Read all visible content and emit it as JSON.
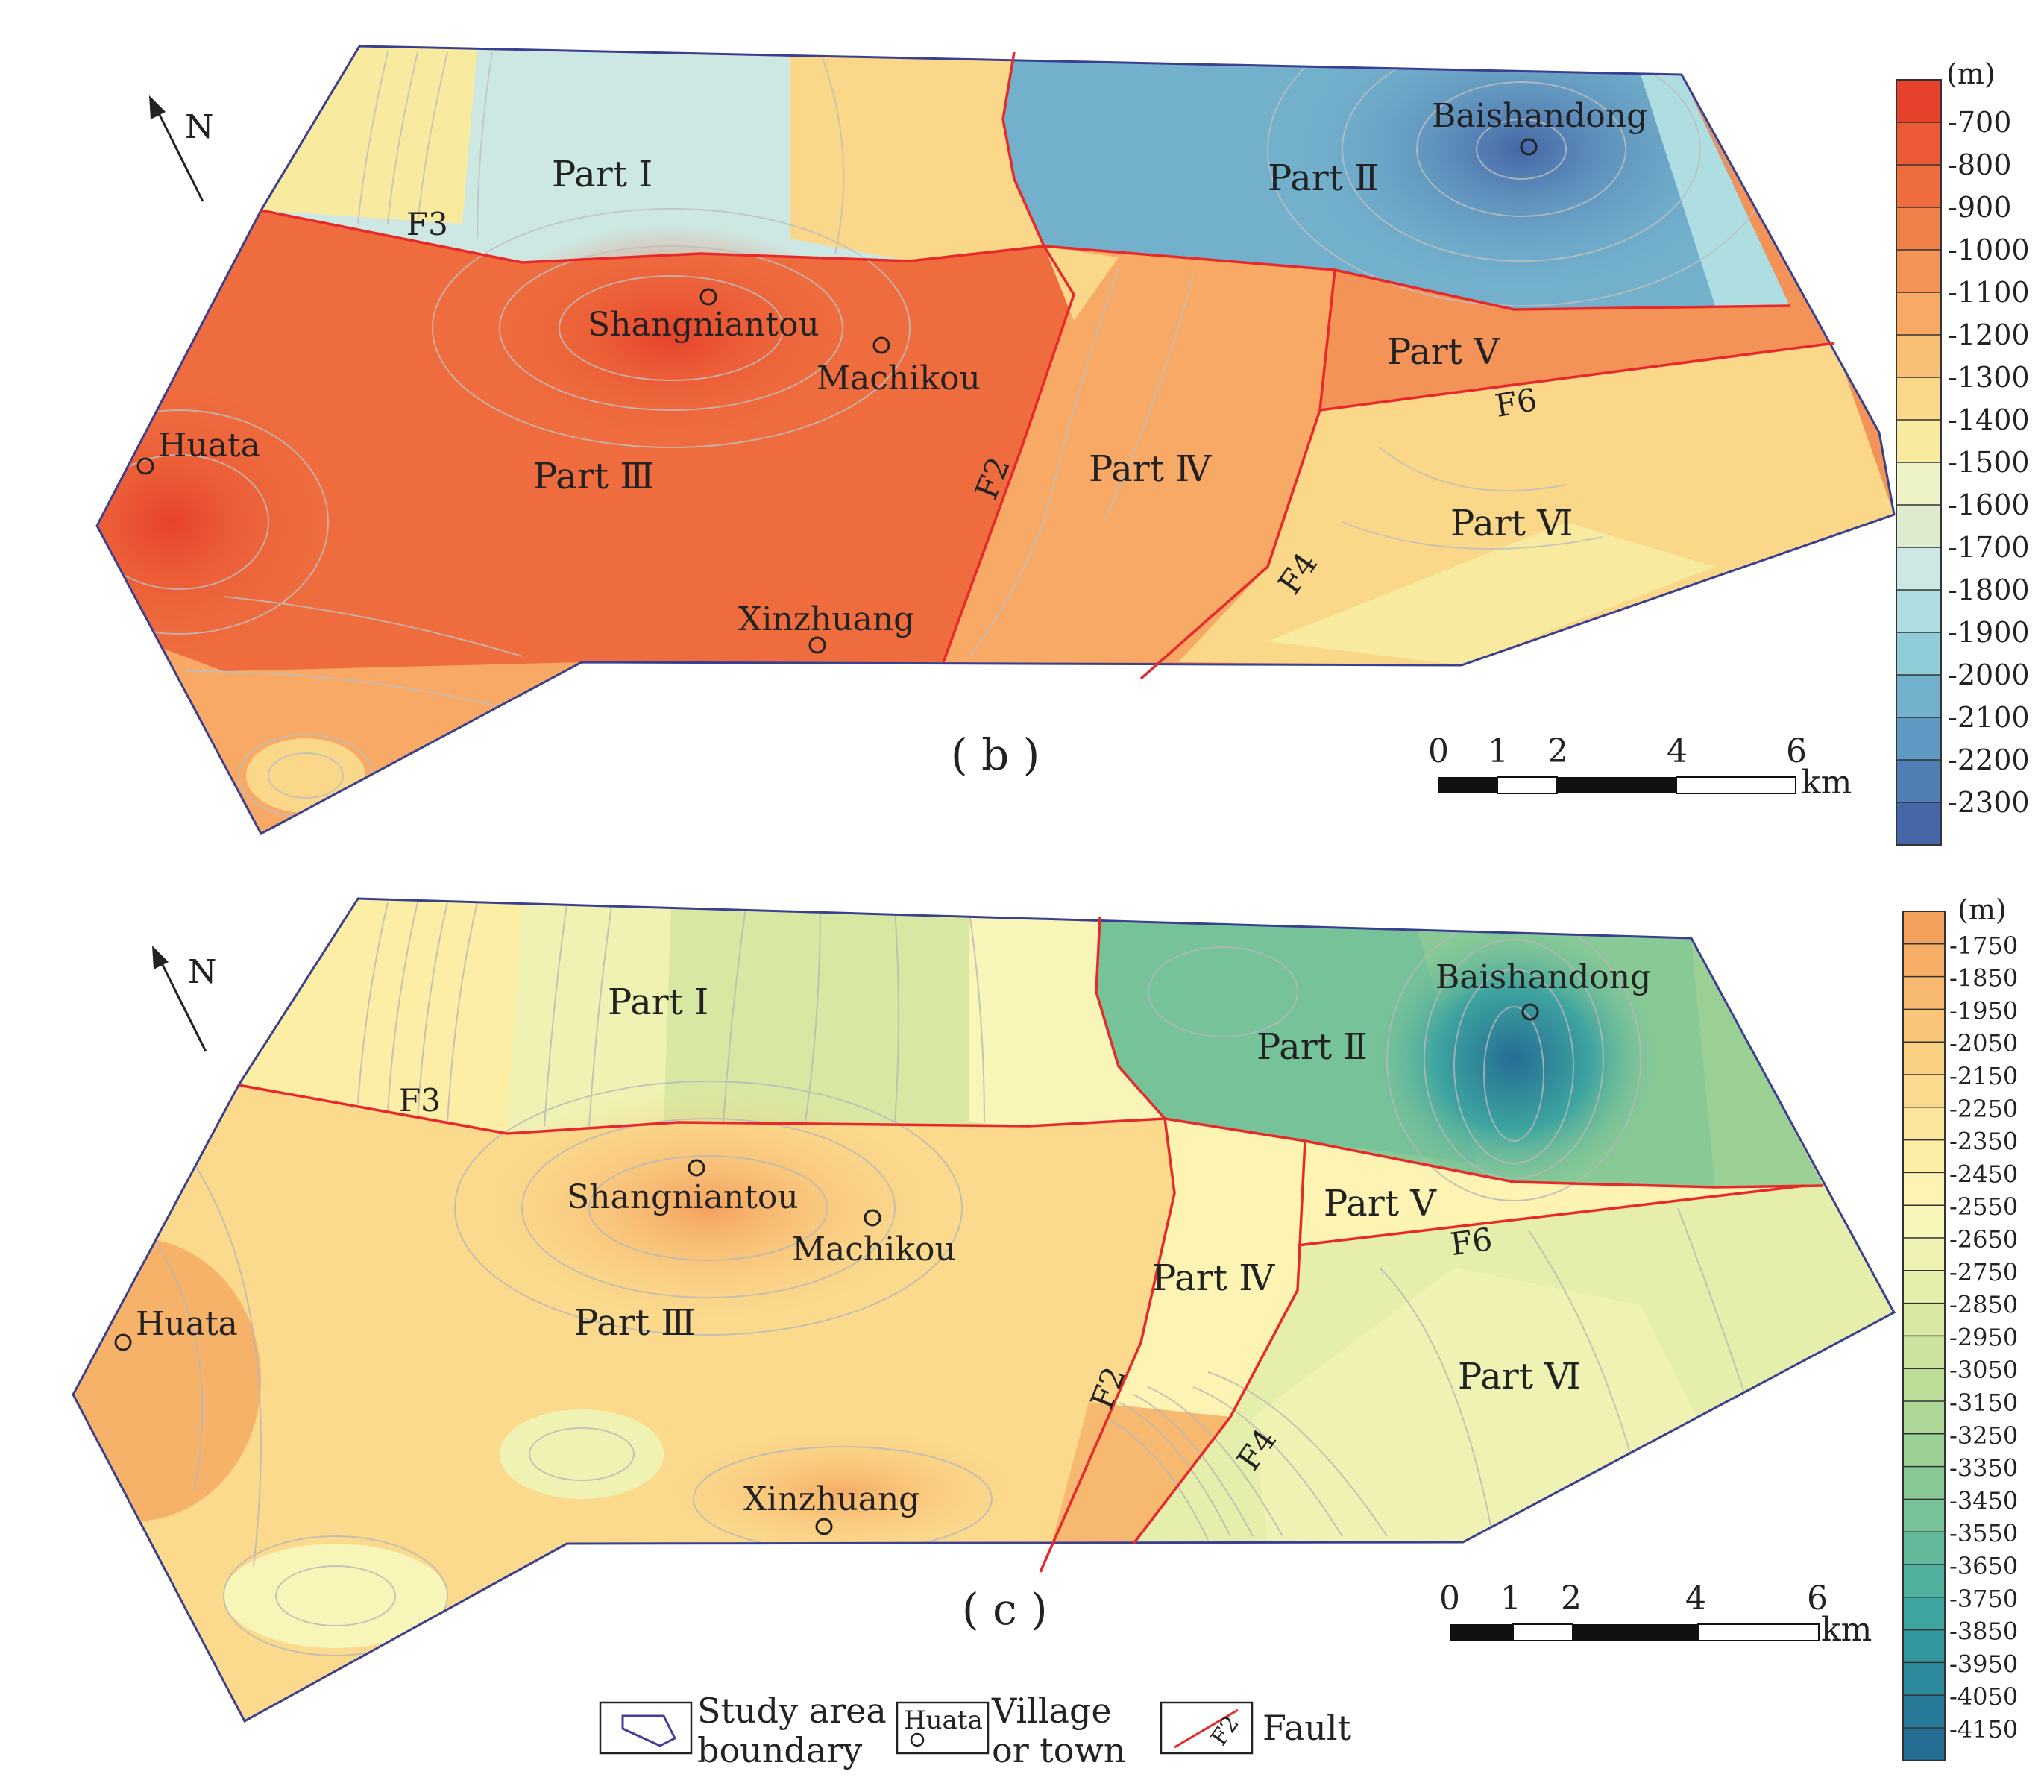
{
  "north_label": "N",
  "panel_b": {
    "panel_label": "( b )",
    "legend_unit": "(m)",
    "legend_ticks": [
      "-700",
      "-800",
      "-900",
      "-1000",
      "-1100",
      "-1200",
      "-1300",
      "-1400",
      "-1500",
      "-1600",
      "-1700",
      "-1800",
      "-1900",
      "-2000",
      "-2100",
      "-2200",
      "-2300"
    ],
    "legend_colors": [
      "#e7432c",
      "#eb5a35",
      "#ee6c3e",
      "#f08049",
      "#f39357",
      "#f7a965",
      "#f8be73",
      "#fad789",
      "#f8ea9f",
      "#edf2c7",
      "#ddeccf",
      "#cde8e3",
      "#aedde2",
      "#90cbd8",
      "#72b0cc",
      "#5f99c3",
      "#4f7fb5",
      "#4566a7"
    ],
    "parts": [
      "Part Ⅰ",
      "Part Ⅱ",
      "Part Ⅲ",
      "Part Ⅳ",
      "Part Ⅴ",
      "Part Ⅵ"
    ],
    "places": [
      "Baishandong",
      "Shangniantou",
      "Machikou",
      "Huata",
      "Xinzhuang"
    ],
    "faults": [
      "F3",
      "F2",
      "F4",
      "F6"
    ],
    "scale_ticks": [
      "0",
      "1",
      "2",
      "4",
      "6"
    ],
    "scale_unit": "km"
  },
  "panel_c": {
    "panel_label": "( c )",
    "legend_unit": "(m)",
    "legend_ticks": [
      "-1750",
      "-1850",
      "-1950",
      "-2050",
      "-2150",
      "-2250",
      "-2350",
      "-2450",
      "-2550",
      "-2650",
      "-2750",
      "-2850",
      "-2950",
      "-3050",
      "-3150",
      "-3250",
      "-3350",
      "-3450",
      "-3550",
      "-3650",
      "-3750",
      "-3850",
      "-3950",
      "-4050",
      "-4150"
    ],
    "legend_colors": [
      "#f4a15e",
      "#f6ad66",
      "#f7b96f",
      "#f8c579",
      "#fad083",
      "#fbda8e",
      "#fce49a",
      "#fdeea6",
      "#fdf4b3",
      "#f8f5b9",
      "#eff2b2",
      "#e5eeab",
      "#d8e8a3",
      "#cbe39e",
      "#bcdd98",
      "#acd796",
      "#9bd095",
      "#89c996",
      "#76c299",
      "#63b99c",
      "#4fb09e",
      "#3ea4a0",
      "#33979f",
      "#2d899c",
      "#287b98",
      "#246e94"
    ],
    "parts": [
      "Part Ⅰ",
      "Part Ⅱ",
      "Part Ⅲ",
      "Part Ⅳ",
      "Part Ⅴ",
      "Part Ⅵ"
    ],
    "places": [
      "Baishandong",
      "Shangniantou",
      "Machikou",
      "Huata",
      "Xinzhuang"
    ],
    "faults": [
      "F3",
      "F2",
      "F4",
      "F6"
    ],
    "scale_ticks": [
      "0",
      "1",
      "2",
      "4",
      "6"
    ],
    "scale_unit": "km"
  },
  "key": {
    "boundary_line1": "Study area",
    "boundary_line2": "boundary",
    "village_sample": "Huata",
    "village_line1": "Village",
    "village_line2": "or town",
    "fault_sample": "F2",
    "fault_label": "Fault"
  }
}
